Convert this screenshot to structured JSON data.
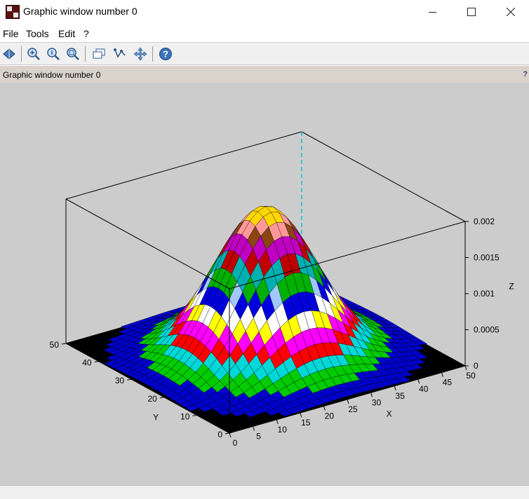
{
  "window": {
    "title": "Graphic window number 0"
  },
  "menu": {
    "items": [
      "File",
      "Tools",
      "Edit",
      "?"
    ]
  },
  "toolbar": {
    "buttons": [
      {
        "icon": "rotate-icon"
      },
      {
        "icon": "zoom-in-icon"
      },
      {
        "icon": "zoom-reset-icon"
      },
      {
        "icon": "zoom-area-icon"
      },
      {
        "icon": "legend-icon"
      },
      {
        "icon": "datatip-icon"
      },
      {
        "icon": "pan-icon"
      },
      {
        "icon": "help-icon"
      }
    ]
  },
  "infobar": {
    "label": "Graphic window number 0",
    "help": "?"
  },
  "colors": {
    "canvas_bg": "#cccccc",
    "floor": "#000000",
    "surface_bands": [
      "#0000cc",
      "#00cc00",
      "#00d8d8",
      "#ff0000",
      "#ff00ff",
      "#ffff00",
      "#ffffff",
      "#0000dd",
      "#a0c8ff",
      "#00b000",
      "#00b0b0",
      "#c00000",
      "#c000c0",
      "#8b4513",
      "#ff9999",
      "#ffd700"
    ],
    "guide_line": "#00c8d0"
  },
  "chart_data": {
    "type": "surface3d",
    "title": "",
    "xlabel": "X",
    "ylabel": "Y",
    "zlabel": "Z",
    "xlim": [
      0,
      50
    ],
    "ylim": [
      0,
      50
    ],
    "zlim": [
      0,
      0.002
    ],
    "x_ticks": [
      "0",
      "5",
      "10",
      "15",
      "20",
      "25",
      "30",
      "35",
      "40",
      "45",
      "50"
    ],
    "y_ticks": [
      "0",
      "10",
      "20",
      "30",
      "40",
      "50"
    ],
    "z_ticks": [
      "0",
      "0.0005",
      "0.001",
      "0.0015",
      "0.002"
    ],
    "z_peak": 0.00205,
    "peak_at": {
      "x": 25,
      "y": 25
    },
    "grid_points": 30,
    "sigma": 9
  }
}
